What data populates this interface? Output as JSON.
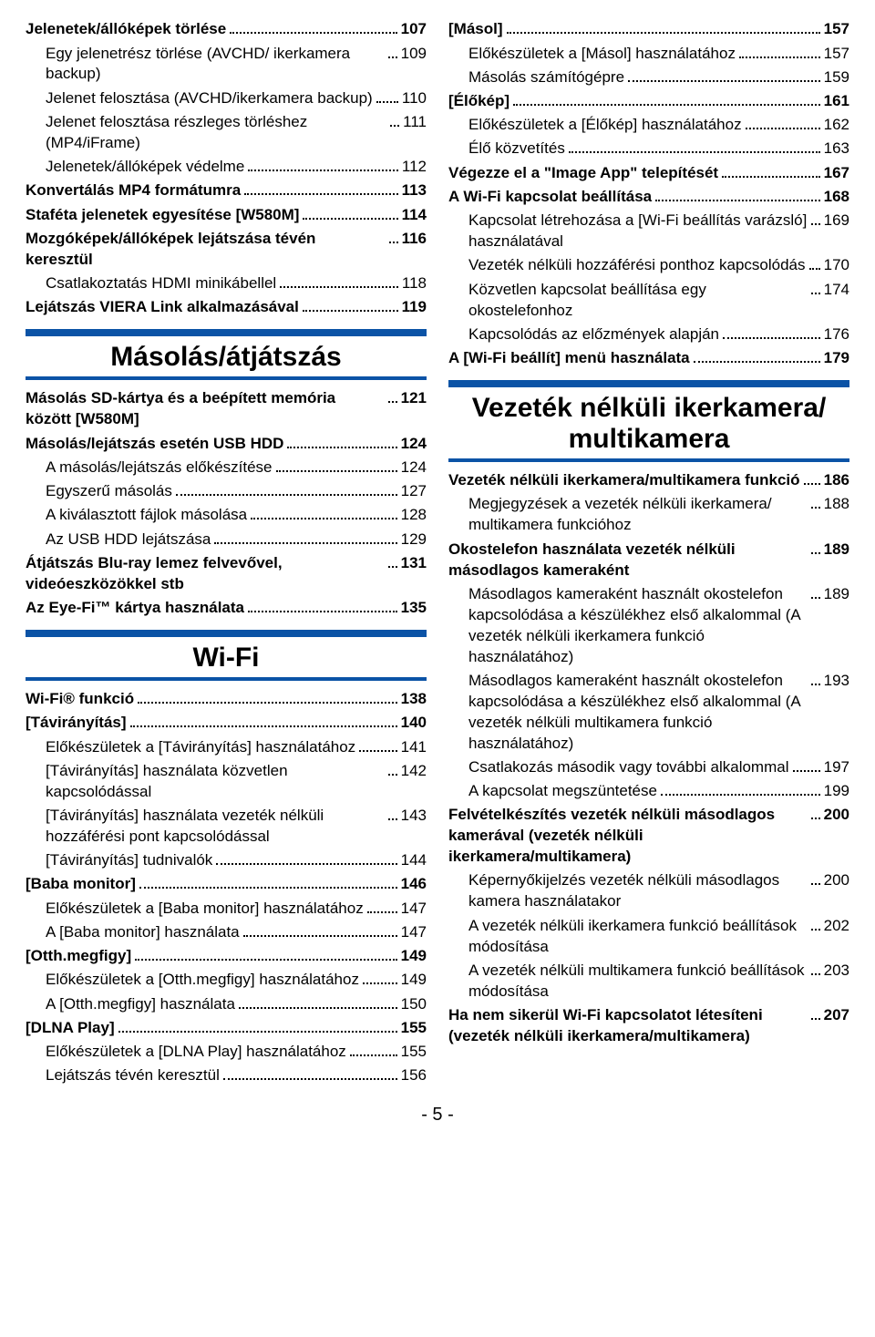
{
  "page_number": "- 5 -",
  "colors": {
    "section_bar": "#0b53a6"
  },
  "left": {
    "pre": [
      {
        "label": "Jelenetek/állóképek törlése",
        "page": "107",
        "bold": true,
        "sub": false
      },
      {
        "label": "Egy jelenetrész törlése (AVCHD/ ikerkamera backup)",
        "page": "109",
        "bold": false,
        "sub": true
      },
      {
        "label": "Jelenet felosztása (AVCHD/ikerkamera backup)",
        "page": "110",
        "bold": false,
        "sub": true
      },
      {
        "label": "Jelenet felosztása részleges törléshez (MP4/iFrame)",
        "page": "111",
        "bold": false,
        "sub": true
      },
      {
        "label": "Jelenetek/állóképek védelme",
        "page": "112",
        "bold": false,
        "sub": true
      },
      {
        "label": "Konvertálás MP4 formátumra",
        "page": "113",
        "bold": true,
        "sub": false
      },
      {
        "label": "Staféta jelenetek egyesítése [W580M]",
        "page": "114",
        "bold": true,
        "sub": false
      },
      {
        "label": "Mozgóképek/állóképek lejátszása tévén keresztül",
        "page": "116",
        "bold": true,
        "sub": false
      },
      {
        "label": "Csatlakoztatás HDMI minikábellel",
        "page": "118",
        "bold": false,
        "sub": true
      },
      {
        "label": "Lejátszás VIERA Link alkalmazásával",
        "page": "119",
        "bold": true,
        "sub": false
      }
    ],
    "sec1_title": "Másolás/átjátszás",
    "sec1": [
      {
        "label": "Másolás SD-kártya és a beépített memória között [W580M]",
        "page": "121",
        "bold": true,
        "sub": false
      },
      {
        "label": "Másolás/lejátszás esetén USB HDD",
        "page": "124",
        "bold": true,
        "sub": false
      },
      {
        "label": "A másolás/lejátszás előkészítése",
        "page": "124",
        "bold": false,
        "sub": true
      },
      {
        "label": "Egyszerű másolás",
        "page": "127",
        "bold": false,
        "sub": true
      },
      {
        "label": "A kiválasztott fájlok másolása",
        "page": "128",
        "bold": false,
        "sub": true
      },
      {
        "label": "Az USB HDD lejátszása",
        "page": "129",
        "bold": false,
        "sub": true
      },
      {
        "label": "Átjátszás Blu-ray lemez felvevővel, videóeszközökkel stb",
        "page": "131",
        "bold": true,
        "sub": false
      },
      {
        "label": "Az Eye-Fi™ kártya használata",
        "page": "135",
        "bold": true,
        "sub": false
      }
    ],
    "sec2_title": "Wi-Fi",
    "sec2": [
      {
        "label": "Wi-Fi® funkció",
        "page": "138",
        "bold": true,
        "sub": false
      },
      {
        "label": "[Távirányítás]",
        "page": "140",
        "bold": true,
        "sub": false
      },
      {
        "label": "Előkészületek a [Távirányítás] használatához",
        "page": "141",
        "bold": false,
        "sub": true
      },
      {
        "label": "[Távirányítás] használata közvetlen kapcsolódással",
        "page": "142",
        "bold": false,
        "sub": true
      },
      {
        "label": "[Távirányítás] használata vezeték nélküli hozzáférési pont kapcsolódással",
        "page": "143",
        "bold": false,
        "sub": true
      },
      {
        "label": "[Távirányítás] tudnivalók",
        "page": "144",
        "bold": false,
        "sub": true
      },
      {
        "label": "[Baba monitor]",
        "page": "146",
        "bold": true,
        "sub": false
      },
      {
        "label": "Előkészületek a [Baba monitor] használatához",
        "page": "147",
        "bold": false,
        "sub": true
      },
      {
        "label": "A [Baba monitor] használata",
        "page": "147",
        "bold": false,
        "sub": true
      },
      {
        "label": "[Otth.megfigy]",
        "page": "149",
        "bold": true,
        "sub": false
      },
      {
        "label": "Előkészületek a [Otth.megfigy] használatához",
        "page": "149",
        "bold": false,
        "sub": true
      },
      {
        "label": "A [Otth.megfigy] használata",
        "page": "150",
        "bold": false,
        "sub": true
      },
      {
        "label": "[DLNA Play]",
        "page": "155",
        "bold": true,
        "sub": false
      },
      {
        "label": "Előkészületek a [DLNA Play] használatához",
        "page": "155",
        "bold": false,
        "sub": true
      },
      {
        "label": "Lejátszás tévén keresztül",
        "page": "156",
        "bold": false,
        "sub": true
      }
    ]
  },
  "right": {
    "pre": [
      {
        "label": "[Másol]",
        "page": "157",
        "bold": true,
        "sub": false
      },
      {
        "label": "Előkészületek a [Másol] használatához",
        "page": "157",
        "bold": false,
        "sub": true
      },
      {
        "label": "Másolás számítógépre",
        "page": "159",
        "bold": false,
        "sub": true
      },
      {
        "label": "[Élőkép]",
        "page": "161",
        "bold": true,
        "sub": false
      },
      {
        "label": "Előkészületek a [Élőkép] használatához",
        "page": "162",
        "bold": false,
        "sub": true
      },
      {
        "label": "Élő közvetítés",
        "page": "163",
        "bold": false,
        "sub": true
      },
      {
        "label": "Végezze el a \"Image App\" telepítését",
        "page": "167",
        "bold": true,
        "sub": false
      },
      {
        "label": "A Wi-Fi kapcsolat beállítása",
        "page": "168",
        "bold": true,
        "sub": false
      },
      {
        "label": "Kapcsolat létrehozása a [Wi-Fi beállítás varázsló] használatával",
        "page": "169",
        "bold": false,
        "sub": true
      },
      {
        "label": "Vezeték nélküli hozzáférési ponthoz kapcsolódás",
        "page": "170",
        "bold": false,
        "sub": true
      },
      {
        "label": "Közvetlen kapcsolat beállítása egy okostelefonhoz",
        "page": "174",
        "bold": false,
        "sub": true
      },
      {
        "label": "Kapcsolódás az előzmények alapján",
        "page": "176",
        "bold": false,
        "sub": true
      },
      {
        "label": "A [Wi-Fi beállít] menü használata",
        "page": "179",
        "bold": true,
        "sub": false
      }
    ],
    "sec3_title": "Vezeték nélküli ikerkamera/ multikamera",
    "sec3": [
      {
        "label": "Vezeték nélküli ikerkamera/multikamera funkció",
        "page": "186",
        "bold": true,
        "sub": false
      },
      {
        "label": "Megjegyzések a vezeték nélküli ikerkamera/ multikamera funkcióhoz",
        "page": "188",
        "bold": false,
        "sub": true
      },
      {
        "label": "Okostelefon használata vezeték nélküli másodlagos kameraként",
        "page": "189",
        "bold": true,
        "sub": false
      },
      {
        "label": "Másodlagos kameraként használt okostelefon kapcsolódása a készülékhez első alkalommal (A vezeték nélküli ikerkamera funkció használatához)",
        "page": "189",
        "bold": false,
        "sub": true
      },
      {
        "label": "Másodlagos kameraként használt okostelefon kapcsolódása a készülékhez első alkalommal (A vezeték nélküli multikamera funkció használatához)",
        "page": "193",
        "bold": false,
        "sub": true
      },
      {
        "label": "Csatlakozás második vagy további alkalommal",
        "page": "197",
        "bold": false,
        "sub": true
      },
      {
        "label": "A kapcsolat megszüntetése",
        "page": "199",
        "bold": false,
        "sub": true
      },
      {
        "label": "Felvételkészítés vezeték nélküli másodlagos kamerával (vezeték nélküli ikerkamera/multikamera)",
        "page": "200",
        "bold": true,
        "sub": false
      },
      {
        "label": "Képernyőkijelzés vezeték nélküli másodlagos kamera használatakor",
        "page": "200",
        "bold": false,
        "sub": true
      },
      {
        "label": "A vezeték nélküli ikerkamera funkció beállítások módosítása",
        "page": "202",
        "bold": false,
        "sub": true
      },
      {
        "label": "A vezeték nélküli multikamera funkció beállítások módosítása",
        "page": "203",
        "bold": false,
        "sub": true
      },
      {
        "label": "Ha nem sikerül Wi-Fi kapcsolatot létesíteni (vezeték nélküli ikerkamera/multikamera)",
        "page": "207",
        "bold": true,
        "sub": false
      }
    ]
  }
}
